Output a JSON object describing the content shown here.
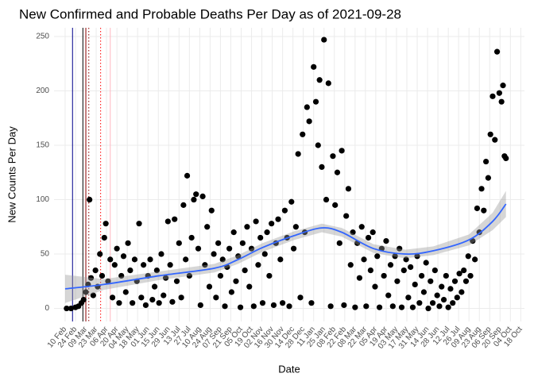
{
  "chart_data": {
    "type": "scatter",
    "title": "New Confirmed and Probable Deaths Per Day as of 2021-09-28",
    "xlabel": "Date",
    "ylabel": "New Counts Per Day",
    "color": "#000000",
    "grid": true,
    "xlim": [
      "2020-01-26",
      "2021-10-23"
    ],
    "ylim": [
      -12,
      258
    ],
    "yticks": [
      0,
      50,
      100,
      150,
      200,
      250
    ],
    "xticks": [
      {
        "value": "2020-02-10",
        "label": "10 Feb"
      },
      {
        "value": "2020-02-24",
        "label": "24 Feb"
      },
      {
        "value": "2020-03-09",
        "label": "09 Mar"
      },
      {
        "value": "2020-03-23",
        "label": "23 Mar"
      },
      {
        "value": "2020-04-06",
        "label": "06 Apr"
      },
      {
        "value": "2020-04-20",
        "label": "20 Apr"
      },
      {
        "value": "2020-05-04",
        "label": "04 May"
      },
      {
        "value": "2020-05-18",
        "label": "18 May"
      },
      {
        "value": "2020-06-01",
        "label": "01 Jun"
      },
      {
        "value": "2020-06-15",
        "label": "15 Jun"
      },
      {
        "value": "2020-06-29",
        "label": "29 Jun"
      },
      {
        "value": "2020-07-13",
        "label": "13 Jul"
      },
      {
        "value": "2020-07-27",
        "label": "27 Jul"
      },
      {
        "value": "2020-08-10",
        "label": "10 Aug"
      },
      {
        "value": "2020-08-24",
        "label": "24 Aug"
      },
      {
        "value": "2020-09-07",
        "label": "07 Sep"
      },
      {
        "value": "2020-09-21",
        "label": "21 Sep"
      },
      {
        "value": "2020-10-05",
        "label": "05 Oct"
      },
      {
        "value": "2020-10-19",
        "label": "19 Oct"
      },
      {
        "value": "2020-11-02",
        "label": "02 Nov"
      },
      {
        "value": "2020-11-16",
        "label": "16 Nov"
      },
      {
        "value": "2020-11-30",
        "label": "30 Nov"
      },
      {
        "value": "2020-12-14",
        "label": "14 Dec"
      },
      {
        "value": "2020-12-28",
        "label": "28 Dec"
      },
      {
        "value": "2021-01-11",
        "label": "11 Jan"
      },
      {
        "value": "2021-01-25",
        "label": "25 Jan"
      },
      {
        "value": "2021-02-08",
        "label": "08 Feb"
      },
      {
        "value": "2021-02-22",
        "label": "22 Feb"
      },
      {
        "value": "2021-03-08",
        "label": "08 Mar"
      },
      {
        "value": "2021-03-22",
        "label": "22 Mar"
      },
      {
        "value": "2021-04-05",
        "label": "05 Apr"
      },
      {
        "value": "2021-04-19",
        "label": "19 Apr"
      },
      {
        "value": "2021-05-03",
        "label": "03 May"
      },
      {
        "value": "2021-05-17",
        "label": "17 May"
      },
      {
        "value": "2021-05-31",
        "label": "31 May"
      },
      {
        "value": "2021-06-14",
        "label": "14 Jun"
      },
      {
        "value": "2021-06-28",
        "label": "28 Jun"
      },
      {
        "value": "2021-07-12",
        "label": "12 Jul"
      },
      {
        "value": "2021-07-26",
        "label": "26 Jul"
      },
      {
        "value": "2021-08-09",
        "label": "09 Aug"
      },
      {
        "value": "2021-08-23",
        "label": "23 Aug"
      },
      {
        "value": "2021-09-06",
        "label": "06 Sep"
      },
      {
        "value": "2021-09-20",
        "label": "20 Sep"
      },
      {
        "value": "2021-10-04",
        "label": "04 Oct"
      },
      {
        "value": "2021-10-18",
        "label": "18 Oct"
      }
    ],
    "vlines": [
      {
        "x": "2020-02-20",
        "color": "#00008b",
        "dash": false
      },
      {
        "x": "2020-03-05",
        "color": "#000000",
        "dash": false
      },
      {
        "x": "2020-03-09",
        "color": "#8b0000",
        "dash": false
      },
      {
        "x": "2020-03-13",
        "color": "#8b0000",
        "dash": true
      },
      {
        "x": "2020-03-29",
        "color": "#ff0000",
        "dash": true
      },
      {
        "x": "2020-04-11",
        "color": "#ffb6c1",
        "dash": false
      }
    ],
    "smooth": {
      "color": "#3366ff",
      "band_color": "#999999",
      "x": [
        "2020-02-10",
        "2020-04-02",
        "2020-06-16",
        "2020-08-30",
        "2020-10-01",
        "2020-11-03",
        "2020-12-16",
        "2021-01-22",
        "2021-02-18",
        "2021-04-02",
        "2021-05-15",
        "2021-06-22",
        "2021-08-09",
        "2021-09-10",
        "2021-09-28"
      ],
      "values": [
        18,
        22,
        30,
        37,
        45,
        56,
        67,
        74,
        70,
        55,
        50,
        53,
        63,
        80,
        96
      ],
      "lower": [
        5,
        17,
        26,
        33,
        41,
        52,
        63,
        70,
        66,
        51,
        46,
        49,
        58,
        72,
        84
      ],
      "upper": [
        31,
        27,
        34,
        41,
        49,
        60,
        71,
        78,
        74,
        59,
        54,
        57,
        68,
        88,
        108
      ]
    },
    "x": [
      "2020-02-12",
      "2020-02-18",
      "2020-02-24",
      "2020-02-28",
      "2020-03-03",
      "2020-03-06",
      "2020-03-09",
      "2020-03-12",
      "2020-03-14",
      "2020-03-16",
      "2020-03-19",
      "2020-03-22",
      "2020-03-25",
      "2020-03-28",
      "2020-03-31",
      "2020-04-03",
      "2020-04-05",
      "2020-04-08",
      "2020-04-11",
      "2020-04-14",
      "2020-04-17",
      "2020-04-20",
      "2020-04-23",
      "2020-04-26",
      "2020-04-29",
      "2020-05-02",
      "2020-05-05",
      "2020-05-08",
      "2020-05-11",
      "2020-05-14",
      "2020-05-17",
      "2020-05-20",
      "2020-05-23",
      "2020-05-26",
      "2020-05-29",
      "2020-06-01",
      "2020-06-04",
      "2020-06-07",
      "2020-06-10",
      "2020-06-13",
      "2020-06-16",
      "2020-06-19",
      "2020-06-22",
      "2020-06-25",
      "2020-06-28",
      "2020-07-01",
      "2020-07-04",
      "2020-07-07",
      "2020-07-10",
      "2020-07-13",
      "2020-07-16",
      "2020-07-19",
      "2020-07-22",
      "2020-07-24",
      "2020-07-27",
      "2020-07-30",
      "2020-08-02",
      "2020-08-05",
      "2020-08-08",
      "2020-08-11",
      "2020-08-14",
      "2020-08-17",
      "2020-08-20",
      "2020-08-23",
      "2020-08-26",
      "2020-08-29",
      "2020-09-01",
      "2020-09-04",
      "2020-09-07",
      "2020-09-10",
      "2020-09-13",
      "2020-09-16",
      "2020-09-19",
      "2020-09-22",
      "2020-09-25",
      "2020-09-28",
      "2020-10-01",
      "2020-10-04",
      "2020-10-07",
      "2020-10-10",
      "2020-10-13",
      "2020-10-16",
      "2020-10-19",
      "2020-10-22",
      "2020-10-25",
      "2020-10-28",
      "2020-10-31",
      "2020-11-03",
      "2020-11-06",
      "2020-11-09",
      "2020-11-12",
      "2020-11-15",
      "2020-11-18",
      "2020-11-21",
      "2020-11-24",
      "2020-11-27",
      "2020-11-30",
      "2020-12-03",
      "2020-12-06",
      "2020-12-09",
      "2020-12-12",
      "2020-12-15",
      "2020-12-18",
      "2020-12-21",
      "2020-12-24",
      "2020-12-27",
      "2020-12-30",
      "2021-01-02",
      "2021-01-05",
      "2021-01-08",
      "2021-01-11",
      "2021-01-14",
      "2021-01-17",
      "2021-01-19",
      "2021-01-22",
      "2021-01-25",
      "2021-01-28",
      "2021-01-31",
      "2021-02-03",
      "2021-02-06",
      "2021-02-09",
      "2021-02-12",
      "2021-02-15",
      "2021-02-18",
      "2021-02-21",
      "2021-02-24",
      "2021-02-27",
      "2021-03-02",
      "2021-03-05",
      "2021-03-08",
      "2021-03-11",
      "2021-03-14",
      "2021-03-17",
      "2021-03-20",
      "2021-03-23",
      "2021-03-26",
      "2021-03-29",
      "2021-04-01",
      "2021-04-04",
      "2021-04-07",
      "2021-04-10",
      "2021-04-13",
      "2021-04-16",
      "2021-04-19",
      "2021-04-22",
      "2021-04-25",
      "2021-04-28",
      "2021-05-01",
      "2021-05-04",
      "2021-05-07",
      "2021-05-10",
      "2021-05-13",
      "2021-05-16",
      "2021-05-19",
      "2021-05-22",
      "2021-05-25",
      "2021-05-28",
      "2021-05-31",
      "2021-06-03",
      "2021-06-06",
      "2021-06-09",
      "2021-06-12",
      "2021-06-15",
      "2021-06-18",
      "2021-06-21",
      "2021-06-24",
      "2021-06-27",
      "2021-06-30",
      "2021-07-03",
      "2021-07-06",
      "2021-07-09",
      "2021-07-12",
      "2021-07-15",
      "2021-07-18",
      "2021-07-21",
      "2021-07-24",
      "2021-07-27",
      "2021-07-30",
      "2021-08-02",
      "2021-08-05",
      "2021-08-08",
      "2021-08-11",
      "2021-08-14",
      "2021-08-17",
      "2021-08-20",
      "2021-08-23",
      "2021-08-26",
      "2021-08-29",
      "2021-09-01",
      "2021-09-04",
      "2021-09-07",
      "2021-09-10",
      "2021-09-13",
      "2021-09-16",
      "2021-09-19",
      "2021-09-22",
      "2021-09-24",
      "2021-09-26",
      "2021-09-28"
    ],
    "values": [
      0,
      0,
      1,
      2,
      5,
      8,
      15,
      22,
      100,
      28,
      12,
      35,
      20,
      50,
      30,
      65,
      78,
      25,
      45,
      10,
      40,
      55,
      5,
      30,
      48,
      15,
      60,
      35,
      5,
      45,
      25,
      78,
      10,
      40,
      3,
      30,
      45,
      8,
      20,
      35,
      5,
      50,
      12,
      28,
      80,
      40,
      6,
      82,
      25,
      60,
      10,
      95,
      45,
      122,
      30,
      65,
      100,
      105,
      55,
      3,
      103,
      40,
      75,
      20,
      90,
      50,
      10,
      60,
      30,
      45,
      2,
      38,
      55,
      15,
      70,
      25,
      48,
      1,
      60,
      35,
      75,
      20,
      55,
      2,
      80,
      40,
      65,
      5,
      50,
      70,
      30,
      78,
      3,
      60,
      82,
      45,
      5,
      90,
      65,
      2,
      98,
      55,
      75,
      142,
      10,
      160,
      70,
      185,
      172,
      5,
      222,
      190,
      150,
      210,
      130,
      247,
      100,
      207,
      2,
      140,
      95,
      125,
      60,
      145,
      3,
      85,
      110,
      40,
      70,
      1,
      60,
      28,
      75,
      45,
      2,
      65,
      35,
      70,
      20,
      48,
      1,
      55,
      30,
      62,
      12,
      40,
      2,
      48,
      25,
      55,
      1,
      35,
      45,
      10,
      38,
      1,
      22,
      48,
      5,
      30,
      15,
      42,
      0,
      25,
      5,
      35,
      12,
      2,
      20,
      8,
      30,
      1,
      18,
      5,
      25,
      10,
      32,
      15,
      35,
      25,
      48,
      30,
      62,
      45,
      92,
      70,
      110,
      90,
      135,
      120,
      160,
      195,
      155,
      236,
      198,
      190,
      205,
      140,
      138
    ]
  }
}
